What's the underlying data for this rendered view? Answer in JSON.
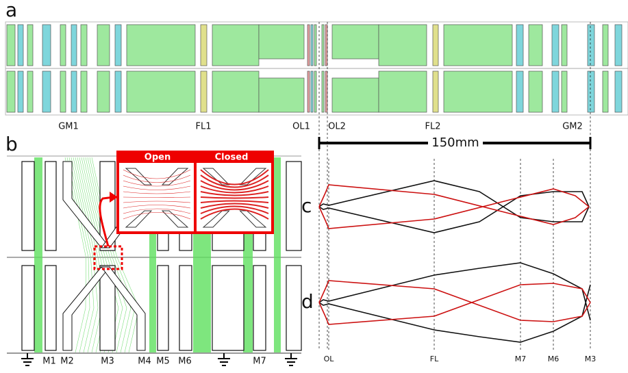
{
  "panels": {
    "a": {
      "label": "a",
      "components": [
        "GM1",
        "FL1",
        "OL1",
        "OL2",
        "FL2",
        "GM2"
      ]
    },
    "b": {
      "label": "b",
      "inset": {
        "open": "Open",
        "closed": "Closed"
      },
      "electrodes": [
        "M1",
        "M2",
        "M3",
        "M4",
        "M5",
        "M6",
        "M7"
      ]
    },
    "c": {
      "label": "c"
    },
    "d": {
      "label": "d"
    },
    "scale_bar": "150mm",
    "positions": [
      "OL",
      "FL",
      "M7",
      "M6",
      "M3"
    ]
  }
}
